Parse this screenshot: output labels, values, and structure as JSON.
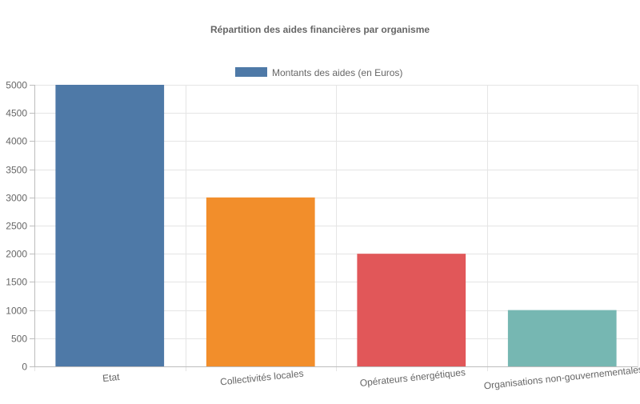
{
  "chart_data": {
    "type": "bar",
    "title": "Répartition des aides financières par organisme",
    "categories": [
      "Etat",
      "Collectivités locales",
      "Opérateurs énergétiques",
      "Organisations non-gouvernementales"
    ],
    "series": [
      {
        "name": "Montants des aides (en Euros)",
        "values": [
          5000,
          3000,
          2000,
          1000
        ],
        "colors": [
          "#4e79a7",
          "#f28e2b",
          "#e15759",
          "#76b7b2"
        ]
      }
    ],
    "legend_color": "#4e79a7",
    "xlabel": "",
    "ylabel": "",
    "ylim": [
      0,
      5000
    ],
    "ytick_step": 500,
    "grid": true,
    "legend_position": "top-center"
  }
}
